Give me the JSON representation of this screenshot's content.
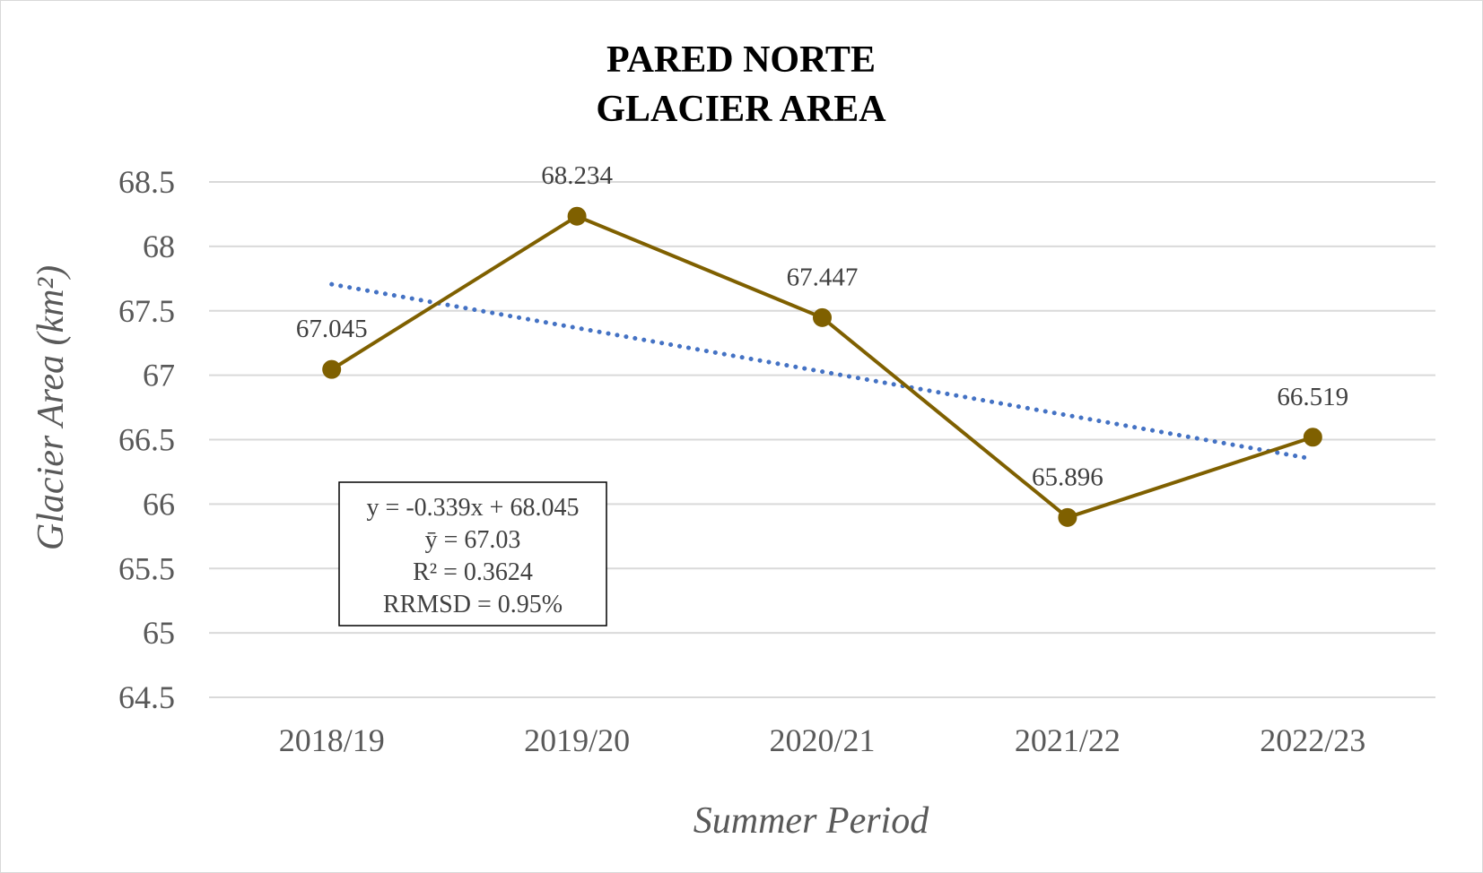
{
  "chart_data": {
    "type": "line",
    "title_lines": [
      "PARED NORTE",
      "GLACIER AREA"
    ],
    "xlabel": "Summer Period",
    "ylabel": "Glacier Area (km²)",
    "categories": [
      "2018/19",
      "2019/20",
      "2020/21",
      "2021/22",
      "2022/23"
    ],
    "values": [
      67.045,
      68.234,
      67.447,
      65.896,
      66.519
    ],
    "data_labels": [
      "67.045",
      "68.234",
      "67.447",
      "65.896",
      "66.519"
    ],
    "ylim": [
      64.5,
      68.5
    ],
    "yticks": [
      64.5,
      65,
      65.5,
      66,
      66.5,
      67,
      67.5,
      68,
      68.5
    ],
    "ytick_labels": [
      "64.5",
      "65",
      "65.5",
      "66",
      "66.5",
      "67",
      "67.5",
      "68",
      "68.5"
    ],
    "grid": true,
    "series_color": "#7f6000",
    "trendline": {
      "type": "linear",
      "slope": -0.339,
      "intercept": 68.045,
      "color": "#4472c4",
      "style": "dotted"
    },
    "annotation": {
      "lines": [
        "y = -0.339x + 68.045",
        "ȳ = 67.03",
        "R² = 0.3624",
        "RRMSD = 0.95%"
      ]
    }
  }
}
